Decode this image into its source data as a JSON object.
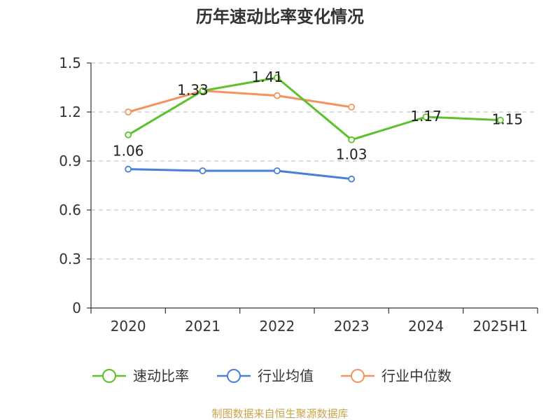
{
  "chart_data": {
    "type": "line",
    "title": "历年速动比率变化情况",
    "categories": [
      "2020",
      "2021",
      "2022",
      "2023",
      "2024",
      "2025H1"
    ],
    "ylim": [
      0,
      1.5
    ],
    "yticks": [
      "0",
      "0.3",
      "0.6",
      "0.9",
      "1.2",
      "1.5"
    ],
    "grid": true,
    "legend_position": "bottom",
    "series": [
      {
        "name": "速动比率",
        "color": "#5cc12a",
        "values": [
          1.06,
          1.33,
          1.41,
          1.03,
          1.17,
          1.15
        ],
        "labels": [
          "1.06",
          "1.33",
          "1.41",
          "1.03",
          "1.17",
          "1.15"
        ]
      },
      {
        "name": "行业均值",
        "color": "#4a7fd8",
        "values": [
          0.85,
          0.84,
          0.84,
          0.79,
          null,
          null
        ]
      },
      {
        "name": "行业中位数",
        "color": "#f5935e",
        "values": [
          1.2,
          1.33,
          1.3,
          1.23,
          null,
          null
        ]
      }
    ]
  },
  "source_text": "制图数据来自恒生聚源数据库"
}
